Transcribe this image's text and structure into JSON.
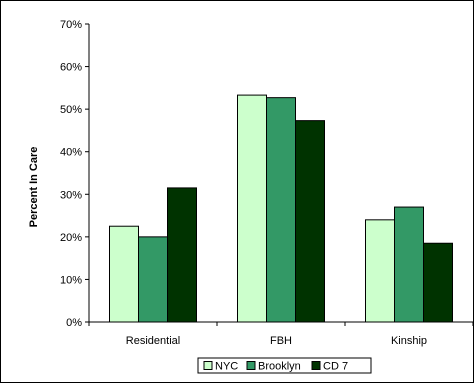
{
  "chart_data": {
    "type": "bar",
    "title": "",
    "xlabel": "",
    "ylabel": "Percent In Care",
    "categories": [
      "Residential",
      "FBH",
      "Kinship"
    ],
    "series": [
      {
        "name": "NYC",
        "values": [
          22.5,
          53.3,
          24.0
        ],
        "color": "#ccffcc"
      },
      {
        "name": "Brooklyn",
        "values": [
          20.0,
          52.7,
          27.0
        ],
        "color": "#339966"
      },
      {
        "name": "CD 7",
        "values": [
          31.5,
          47.3,
          18.5
        ],
        "color": "#003300"
      }
    ],
    "ylim": [
      0,
      70
    ],
    "yticks": [
      0,
      10,
      20,
      30,
      40,
      50,
      60,
      70
    ],
    "ytick_labels": [
      "0%",
      "10%",
      "20%",
      "30%",
      "40%",
      "50%",
      "60%",
      "70%"
    ],
    "grid": false,
    "legend_position": "bottom-center"
  }
}
